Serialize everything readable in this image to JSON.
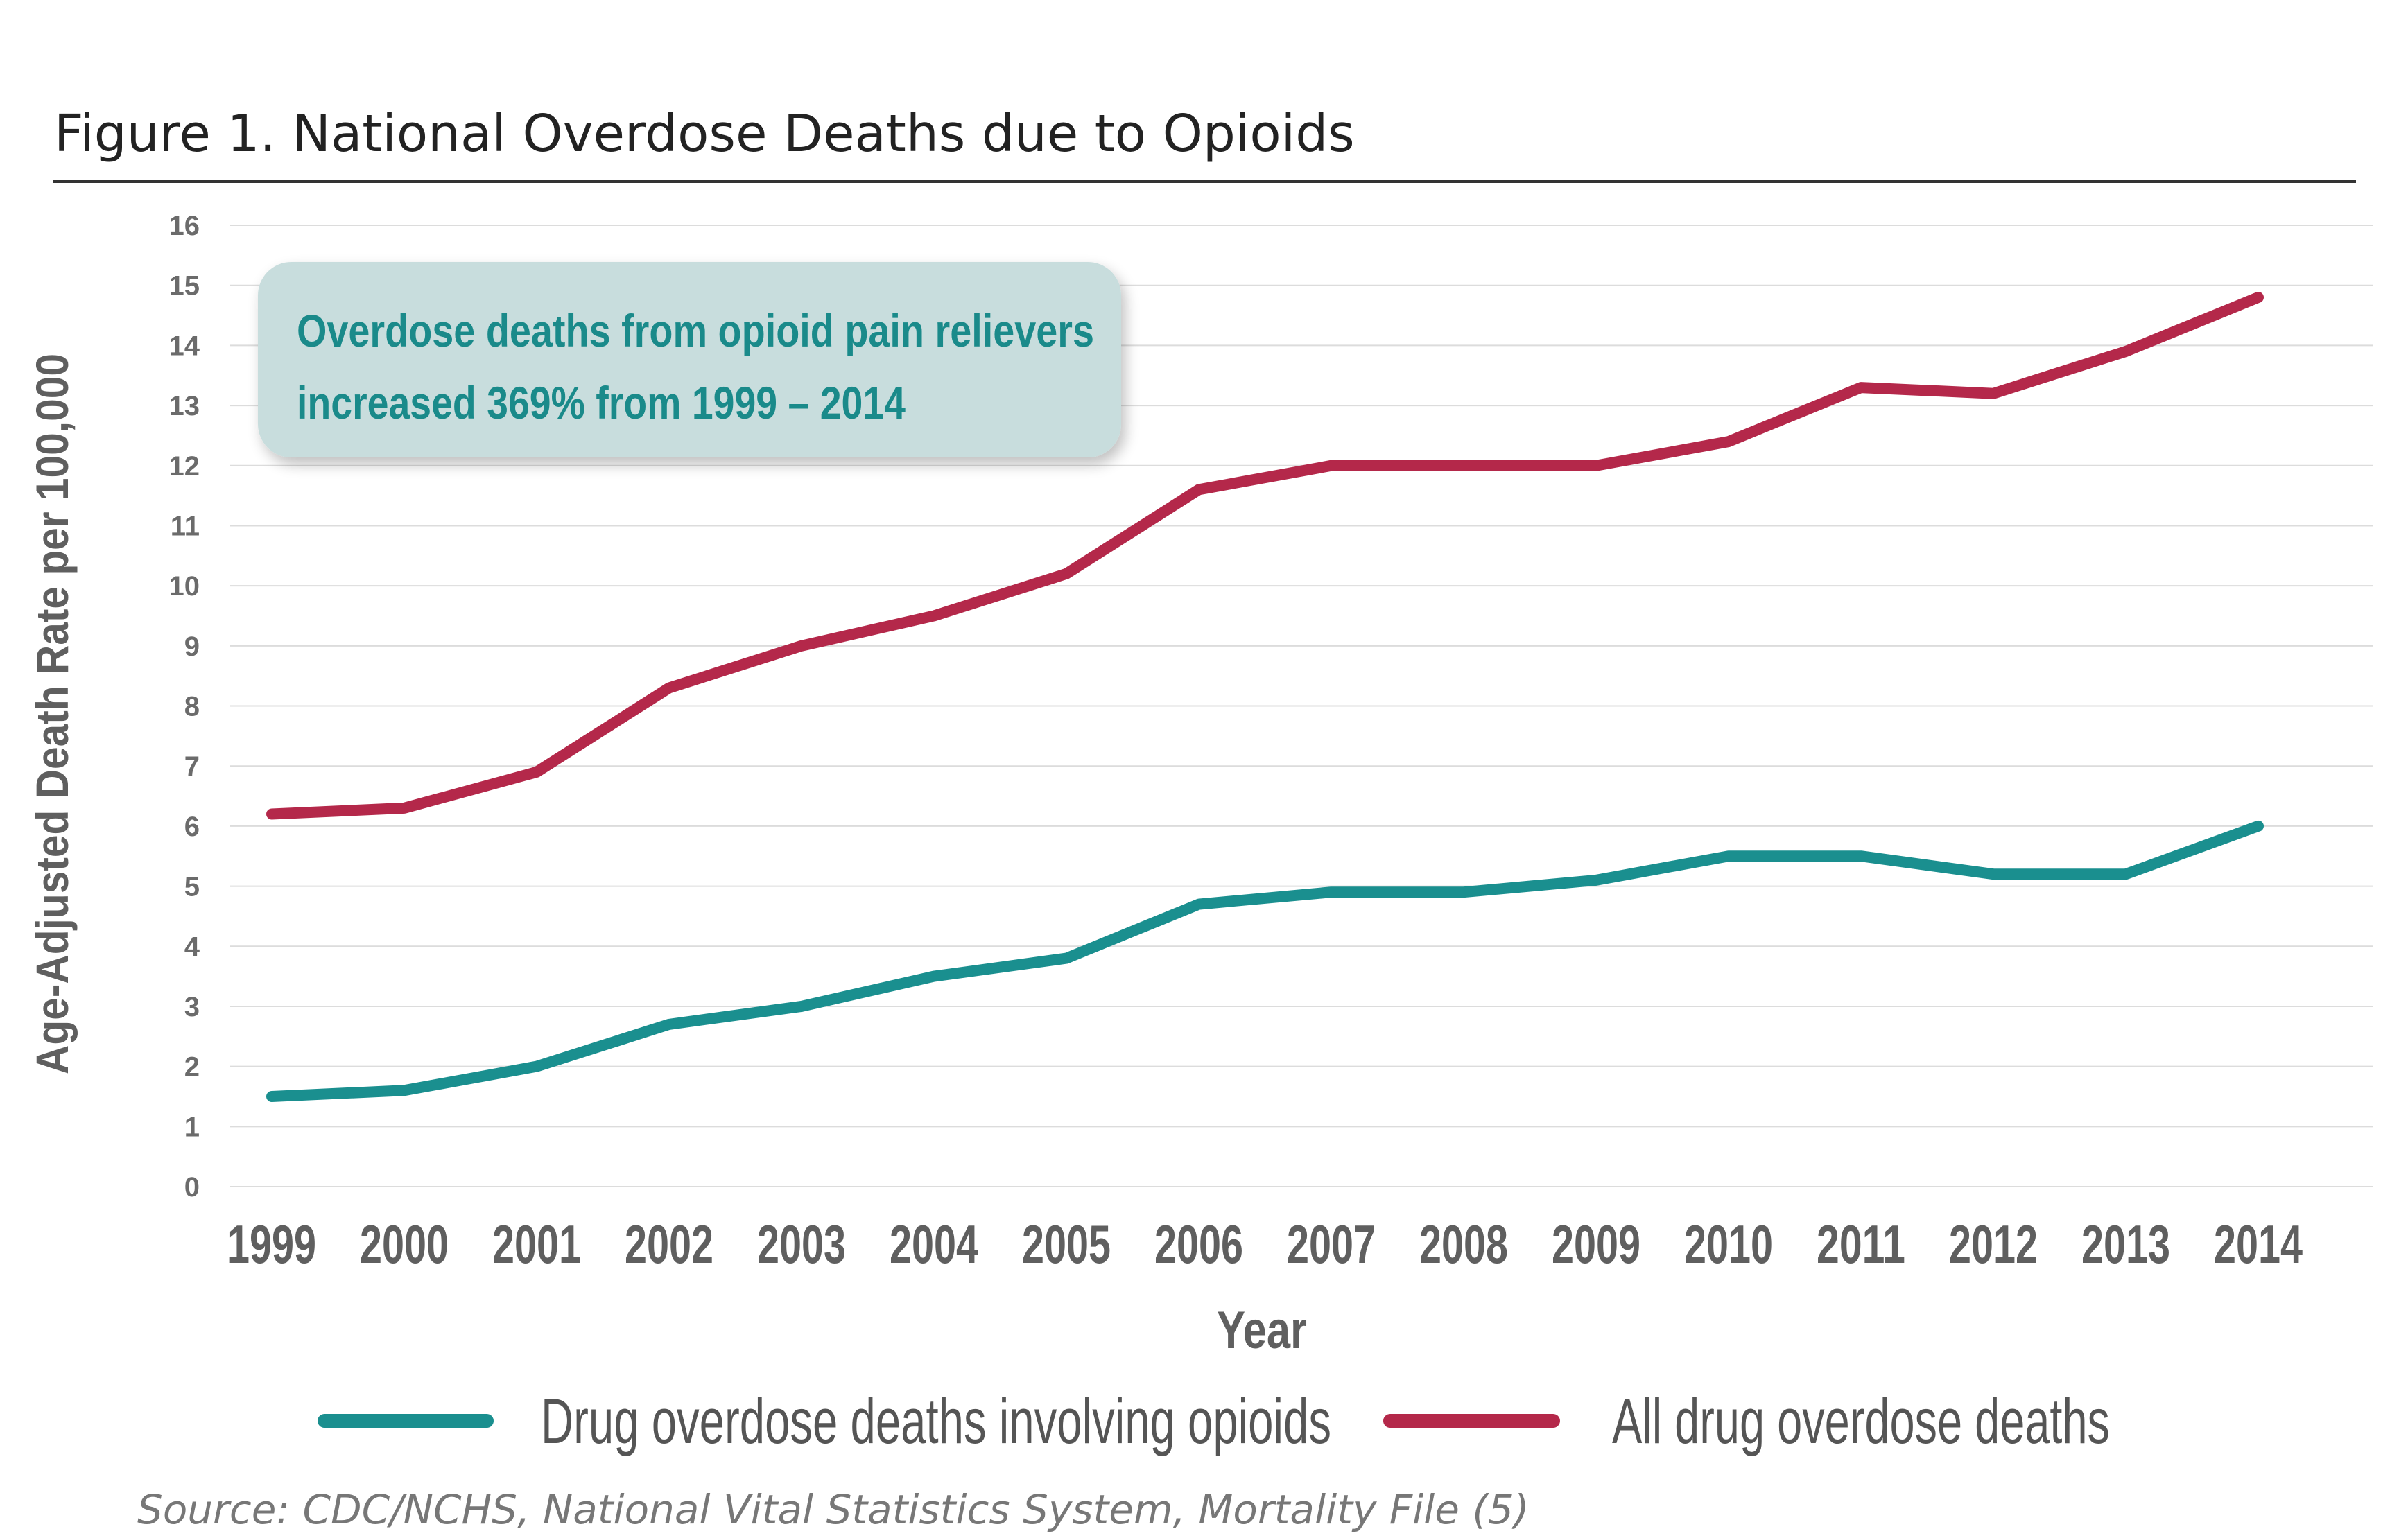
{
  "chart_data": {
    "type": "line",
    "title": "Figure 1. National Overdose Deaths due to Opioids",
    "xlabel": "Year",
    "ylabel": "Age-Adjusted Death Rate per 100,000",
    "ylim": [
      0,
      16
    ],
    "yticks": [
      "0",
      "1",
      "2",
      "3",
      "4",
      "5",
      "6",
      "7",
      "8",
      "9",
      "10",
      "11",
      "12",
      "13",
      "14",
      "15",
      "16"
    ],
    "x": [
      "1999",
      "2000",
      "2001",
      "2002",
      "2003",
      "2004",
      "2005",
      "2006",
      "2007",
      "2008",
      "2009",
      "2010",
      "2011",
      "2012",
      "2013",
      "2014"
    ],
    "grid": true,
    "legend_position": "bottom",
    "series": [
      {
        "name": "Drug overdose deaths involving opioids",
        "color": "#1a8f8f",
        "values": [
          1.5,
          1.6,
          2.0,
          2.7,
          3.0,
          3.5,
          3.8,
          4.7,
          4.9,
          4.9,
          5.1,
          5.5,
          5.5,
          5.2,
          5.2,
          6.0
        ]
      },
      {
        "name": "All drug overdose deaths",
        "color": "#b4284a",
        "values": [
          6.2,
          6.3,
          6.9,
          8.3,
          9.0,
          9.5,
          10.2,
          11.6,
          12.0,
          12.0,
          12.0,
          12.4,
          13.3,
          13.2,
          13.9,
          14.8
        ]
      }
    ],
    "annotation": {
      "line1": "Overdose deaths from opioid pain relievers",
      "line2": "increased 369% from 1999 – 2014",
      "text_color": "#1a8a8a",
      "box_color": "#c8dddd"
    },
    "source": "Source: CDC/NCHS, National Vital Statistics System, Mortality File (5)"
  },
  "colors": {
    "grid": "#dcdcdc",
    "rule": "#333333"
  }
}
